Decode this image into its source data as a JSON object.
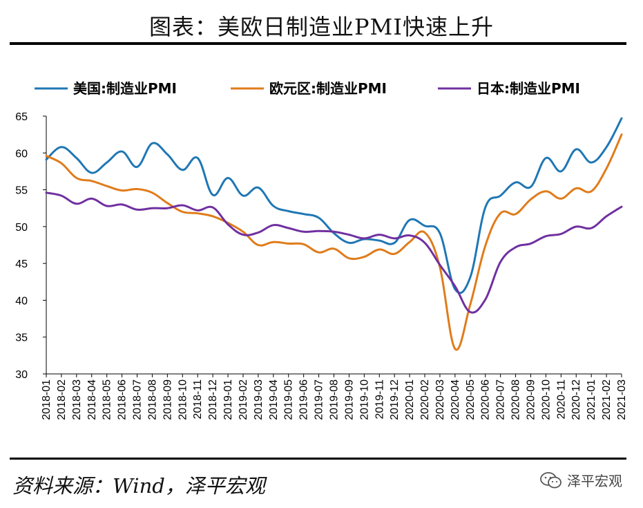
{
  "header": {
    "title": "图表：美欧日制造业PMI快速上升"
  },
  "footer": {
    "source": "资料来源：Wind，泽平宏观",
    "brand": "泽平宏观"
  },
  "chart_data": {
    "type": "line",
    "title": "图表：美欧日制造业PMI快速上升",
    "xlabel": "",
    "ylabel": "",
    "ylim": [
      30,
      65
    ],
    "yticks": [
      30,
      35,
      40,
      45,
      50,
      55,
      60,
      65
    ],
    "grid": false,
    "legend_placement": "top",
    "categories": [
      "2018-01",
      "2018-02",
      "2018-03",
      "2018-04",
      "2018-05",
      "2018-06",
      "2018-07",
      "2018-08",
      "2018-09",
      "2018-10",
      "2018-11",
      "2018-12",
      "2019-01",
      "2019-02",
      "2019-03",
      "2019-04",
      "2019-05",
      "2019-06",
      "2019-07",
      "2019-08",
      "2019-09",
      "2019-10",
      "2019-11",
      "2019-12",
      "2020-01",
      "2020-02",
      "2020-03",
      "2020-04",
      "2020-05",
      "2020-06",
      "2020-07",
      "2020-08",
      "2020-09",
      "2020-10",
      "2020-11",
      "2020-12",
      "2021-01",
      "2021-02",
      "2021-03"
    ],
    "series": [
      {
        "name": "美国:制造业PMI",
        "color": "#1f77b4",
        "values": [
          59.1,
          60.8,
          59.3,
          57.3,
          58.7,
          60.2,
          58.1,
          61.3,
          59.8,
          57.7,
          59.3,
          54.3,
          56.6,
          54.2,
          55.3,
          52.8,
          52.1,
          51.7,
          51.2,
          49.1,
          47.8,
          48.3,
          48.1,
          47.8,
          50.9,
          50.1,
          49.1,
          41.5,
          43.1,
          52.6,
          54.2,
          56.0,
          55.4,
          59.3,
          57.5,
          60.5,
          58.7,
          60.8,
          64.7
        ]
      },
      {
        "name": "欧元区:制造业PMI",
        "color": "#e07b1a",
        "values": [
          59.6,
          58.6,
          56.6,
          56.2,
          55.5,
          54.9,
          55.1,
          54.6,
          53.2,
          52.0,
          51.8,
          51.4,
          50.5,
          49.3,
          47.5,
          47.9,
          47.7,
          47.6,
          46.5,
          47.0,
          45.7,
          45.9,
          46.9,
          46.3,
          47.9,
          49.2,
          44.5,
          33.4,
          39.4,
          47.4,
          51.8,
          51.7,
          53.7,
          54.8,
          53.8,
          55.2,
          54.8,
          57.9,
          62.5
        ]
      },
      {
        "name": "日本:制造业PMI",
        "color": "#7030a0",
        "values": [
          54.6,
          54.2,
          53.1,
          53.8,
          52.8,
          53.0,
          52.3,
          52.5,
          52.5,
          52.9,
          52.2,
          52.6,
          50.3,
          48.9,
          49.2,
          50.2,
          49.8,
          49.3,
          49.4,
          49.3,
          48.9,
          48.4,
          48.9,
          48.4,
          48.8,
          47.8,
          44.8,
          41.9,
          38.4,
          40.1,
          45.2,
          47.2,
          47.7,
          48.7,
          49.0,
          50.0,
          49.8,
          51.4,
          52.7
        ]
      }
    ]
  }
}
